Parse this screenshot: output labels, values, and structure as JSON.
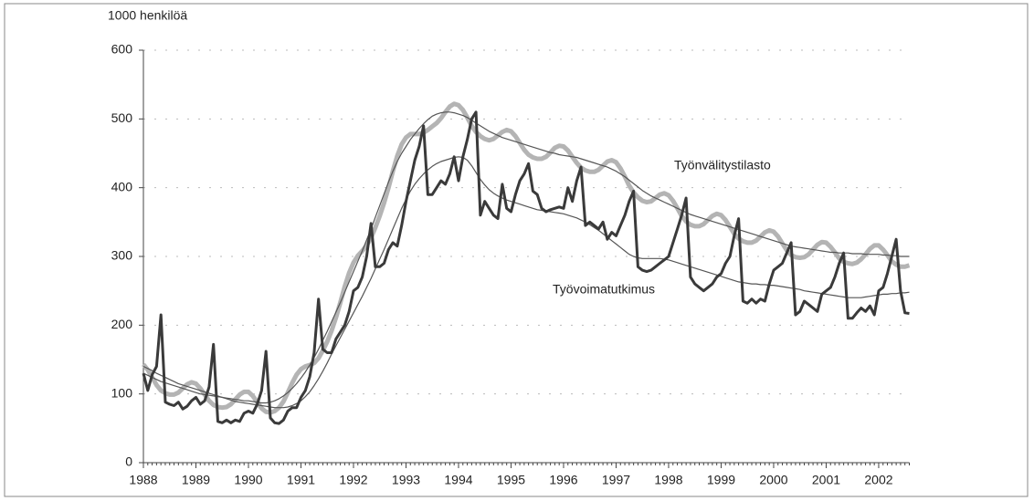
{
  "chart_data": {
    "type": "line",
    "ylabel": "1000 henkilöä",
    "categories": [
      "1988",
      null,
      null,
      null,
      null,
      null,
      null,
      null,
      null,
      null,
      null,
      null,
      "1989",
      null,
      null,
      null,
      null,
      null,
      null,
      null,
      null,
      null,
      null,
      null,
      "1990",
      null,
      null,
      null,
      null,
      null,
      null,
      null,
      null,
      null,
      null,
      null,
      "1991",
      null,
      null,
      null,
      null,
      null,
      null,
      null,
      null,
      null,
      null,
      null,
      "1992",
      null,
      null,
      null,
      null,
      null,
      null,
      null,
      null,
      null,
      null,
      null,
      "1993",
      null,
      null,
      null,
      null,
      null,
      null,
      null,
      null,
      null,
      null,
      null,
      "1994",
      null,
      null,
      null,
      null,
      null,
      null,
      null,
      null,
      null,
      null,
      null,
      "1995",
      null,
      null,
      null,
      null,
      null,
      null,
      null,
      null,
      null,
      null,
      null,
      "1996",
      null,
      null,
      null,
      null,
      null,
      null,
      null,
      null,
      null,
      null,
      null,
      "1997",
      null,
      null,
      null,
      null,
      null,
      null,
      null,
      null,
      null,
      null,
      null,
      "1998",
      null,
      null,
      null,
      null,
      null,
      null,
      null,
      null,
      null,
      null,
      null,
      "1999",
      null,
      null,
      null,
      null,
      null,
      null,
      null,
      null,
      null,
      null,
      null,
      "2000",
      null,
      null,
      null,
      null,
      null,
      null,
      null,
      null,
      null,
      null,
      null,
      "2001",
      null,
      null,
      null,
      null,
      null,
      null,
      null,
      null,
      null,
      null,
      null,
      "2002",
      null,
      null,
      null,
      null,
      null,
      null,
      null
    ],
    "series": [
      {
        "name": "Työnvälitystilasto",
        "color": "#b4b4b4",
        "values": [
          143,
          135,
          124,
          113,
          105,
          101,
          99,
          99,
          102,
          108,
          114,
          117,
          115,
          108,
          99,
          90,
          84,
          81,
          80,
          81,
          85,
          92,
          99,
          103,
          103,
          97,
          88,
          79,
          74,
          73,
          75,
          80,
          89,
          102,
          116,
          128,
          136,
          140,
          142,
          145,
          152,
          163,
          176,
          192,
          211,
          233,
          256,
          276,
          291,
          301,
          308,
          316,
          327,
          342,
          359,
          378,
          400,
          424,
          446,
          463,
          473,
          478,
          478,
          478,
          480,
          484,
          489,
          494,
          501,
          510,
          518,
          522,
          520,
          513,
          502,
          490,
          481,
          475,
          471,
          469,
          471,
          476,
          481,
          484,
          482,
          475,
          465,
          455,
          448,
          444,
          442,
          442,
          445,
          451,
          458,
          461,
          460,
          454,
          445,
          436,
          429,
          425,
          423,
          423,
          426,
          432,
          438,
          440,
          437,
          428,
          416,
          403,
          393,
          386,
          381,
          379,
          380,
          385,
          390,
          392,
          389,
          381,
          370,
          359,
          351,
          346,
          344,
          344,
          347,
          353,
          359,
          362,
          360,
          353,
          343,
          333,
          326,
          322,
          320,
          320,
          323,
          329,
          335,
          338,
          336,
          329,
          319,
          309,
          302,
          299,
          298,
          299,
          303,
          310,
          317,
          321,
          320,
          314,
          306,
          297,
          292,
          290,
          289,
          291,
          296,
          303,
          311,
          316,
          316,
          310,
          302,
          293,
          288,
          285,
          285,
          287
        ]
      },
      {
        "color": "#555555",
        "values": [
          130,
          127,
          124,
          121,
          118,
          116,
          114,
          112,
          110,
          108,
          106,
          104,
          102,
          100,
          99,
          98,
          97,
          96,
          95,
          94,
          93,
          92,
          91,
          90,
          90,
          89,
          88,
          87,
          87,
          88,
          90,
          93,
          97,
          102,
          108,
          115,
          123,
          132,
          142,
          153,
          165,
          178,
          191,
          205,
          219,
          233,
          248,
          263,
          278,
          293,
          308,
          324,
          340,
          357,
          374,
          391,
          408,
          424,
          438,
          450,
          460,
          470,
          478,
          486,
          493,
          499,
          504,
          507,
          509,
          510,
          510,
          509,
          507,
          505,
          502,
          498,
          494,
          490,
          486,
          482,
          479,
          476,
          473,
          471,
          469,
          467,
          465,
          463,
          461,
          459,
          457,
          455,
          453,
          451,
          450,
          448,
          447,
          446,
          445,
          444,
          442,
          440,
          438,
          436,
          434,
          432,
          430,
          427,
          424,
          420,
          416,
          411,
          406,
          401,
          396,
          392,
          388,
          385,
          382,
          379,
          376,
          373,
          370,
          367,
          364,
          361,
          359,
          357,
          355,
          353,
          351,
          349,
          347,
          345,
          343,
          341,
          339,
          337,
          335,
          333,
          331,
          329,
          327,
          325,
          323,
          321,
          319,
          317,
          315,
          314,
          313,
          312,
          311,
          310,
          309,
          308,
          307,
          306,
          306,
          305,
          305,
          305,
          304,
          304,
          304,
          303,
          303,
          303,
          303,
          302,
          302,
          301,
          301,
          300,
          300,
          300
        ]
      },
      {
        "color": "#555555",
        "values": [
          140,
          137,
          134,
          130,
          127,
          124,
          121,
          118,
          115,
          113,
          111,
          109,
          107,
          105,
          103,
          101,
          99,
          97,
          95,
          93,
          91,
          89,
          88,
          87,
          86,
          85,
          84,
          83,
          82,
          81,
          80,
          80,
          80,
          81,
          83,
          86,
          90,
          96,
          103,
          112,
          122,
          133,
          145,
          158,
          170,
          182,
          194,
          206,
          218,
          230,
          242,
          255,
          268,
          282,
          296,
          310,
          325,
          340,
          355,
          370,
          383,
          395,
          405,
          413,
          420,
          426,
          431,
          435,
          438,
          440,
          442,
          444,
          445,
          444,
          440,
          432,
          422,
          412,
          404,
          397,
          392,
          388,
          385,
          382,
          380,
          378,
          376,
          374,
          372,
          370,
          368,
          367,
          366,
          365,
          364,
          363,
          362,
          360,
          358,
          356,
          353,
          350,
          346,
          342,
          338,
          333,
          328,
          323,
          318,
          313,
          308,
          303,
          300,
          298,
          297,
          297,
          297,
          297,
          297,
          296,
          295,
          293,
          291,
          289,
          287,
          285,
          283,
          281,
          279,
          277,
          275,
          273,
          271,
          269,
          267,
          265,
          263,
          262,
          261,
          260,
          260,
          259,
          259,
          258,
          258,
          257,
          256,
          255,
          254,
          253,
          252,
          250,
          249,
          248,
          247,
          246,
          245,
          244,
          243,
          242,
          241,
          240,
          240,
          240,
          240,
          241,
          242,
          243,
          244,
          245,
          245,
          246,
          246,
          247,
          247,
          248
        ]
      },
      {
        "name": "Työvoimatutkimus",
        "color": "#3a3a3a",
        "values": [
          130,
          105,
          128,
          140,
          215,
          88,
          85,
          83,
          88,
          78,
          82,
          90,
          95,
          85,
          90,
          110,
          172,
          60,
          58,
          62,
          58,
          62,
          60,
          72,
          75,
          72,
          85,
          105,
          162,
          65,
          58,
          57,
          62,
          75,
          80,
          80,
          95,
          105,
          125,
          160,
          238,
          165,
          160,
          160,
          180,
          190,
          200,
          220,
          250,
          255,
          270,
          300,
          348,
          285,
          285,
          290,
          310,
          320,
          315,
          345,
          380,
          410,
          440,
          460,
          490,
          390,
          390,
          400,
          410,
          405,
          420,
          445,
          410,
          445,
          470,
          500,
          510,
          360,
          380,
          370,
          360,
          355,
          405,
          370,
          365,
          390,
          410,
          420,
          435,
          395,
          390,
          370,
          365,
          368,
          370,
          372,
          370,
          400,
          380,
          410,
          430,
          345,
          350,
          345,
          340,
          350,
          325,
          335,
          330,
          345,
          360,
          380,
          395,
          285,
          280,
          278,
          280,
          285,
          290,
          295,
          300,
          320,
          340,
          360,
          385,
          270,
          260,
          255,
          250,
          255,
          260,
          270,
          275,
          290,
          300,
          330,
          355,
          235,
          232,
          238,
          232,
          238,
          235,
          260,
          280,
          285,
          290,
          305,
          320,
          215,
          220,
          235,
          230,
          225,
          220,
          245,
          250,
          255,
          270,
          290,
          305,
          210,
          210,
          218,
          225,
          220,
          228,
          215,
          250,
          255,
          275,
          300,
          325,
          250,
          218,
          217
        ]
      }
    ],
    "ylim": [
      0,
      600
    ],
    "yticks": [
      0,
      100,
      200,
      300,
      400,
      500,
      600
    ],
    "grid": true
  }
}
